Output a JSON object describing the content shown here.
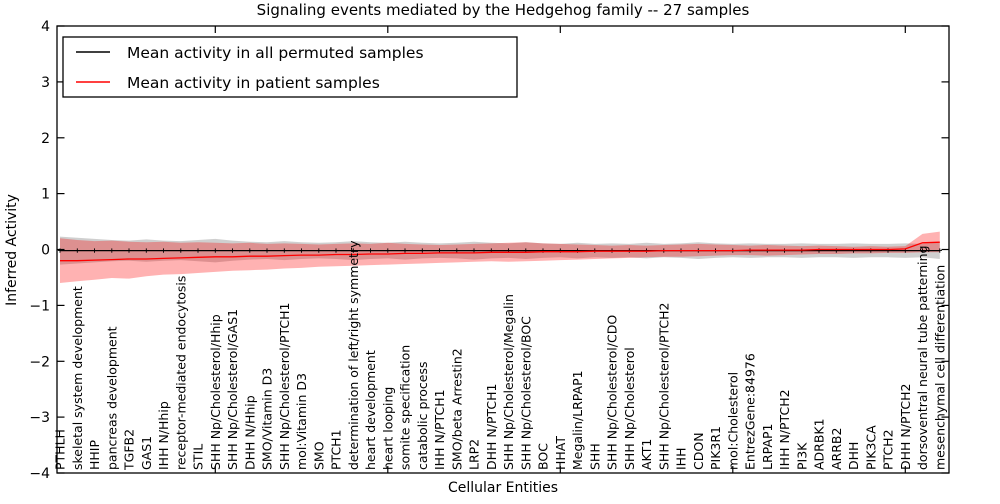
{
  "chart_data": {
    "type": "line",
    "title": "Signaling events mediated by the Hedgehog family -- 27 samples",
    "xlabel": "Cellular Entities",
    "ylabel": "Inferred Activity",
    "ylim": [
      -4,
      4
    ],
    "yticks": [
      4,
      3,
      2,
      1,
      0,
      -1,
      -2,
      -3,
      -4
    ],
    "xtick_indices": [
      9,
      19,
      29,
      39,
      49
    ],
    "grid": false,
    "legend_position": "upper left",
    "legend": [
      {
        "label": "Mean activity in all permuted samples",
        "color": "#000000"
      },
      {
        "label": "Mean activity in patient samples",
        "color": "#ff0000"
      }
    ],
    "categories": [
      "PTHLH",
      "skeletal system development",
      "HHIP",
      "pancreas development",
      "TGFB2",
      "GAS1",
      "IHH N/Hhip",
      "receptor-mediated endocytosis",
      "STIL",
      "SHH Np/Cholesterol/Hhip",
      "SHH Np/Cholesterol/GAS1",
      "DHH N/Hhip",
      "SMO/Vitamin D3",
      "SHH Np/Cholesterol/PTCH1",
      "mol:Vitamin D3",
      "SMO",
      "PTCH1",
      "determination of left/right symmetry",
      "heart development",
      "heart looping",
      "somite specification",
      "catabolic process",
      "IHH N/PTCH1",
      "SMO/beta Arrestin2",
      "LRP2",
      "DHH N/PTCH1",
      "SHH Np/Cholesterol/Megalin",
      "SHH Np/Cholesterol/BOC",
      "BOC",
      "HHAT",
      "Megalin/LRPAP1",
      "SHH",
      "SHH Np/Cholesterol/CDO",
      "SHH Np/Cholesterol",
      "AKT1",
      "SHH Np/Cholesterol/PTCH2",
      "IHH",
      "CDON",
      "PIK3R1",
      "mol:Cholesterol",
      "EntrezGene:84976",
      "LRPAP1",
      "IHH N/PTCH2",
      "PI3K",
      "ADRBK1",
      "ARRB2",
      "DHH",
      "PIK3CA",
      "PTCH2",
      "DHH N/PTCH2",
      "dorsoventral neural tube patterning",
      "mesenchymal cell differentiation"
    ],
    "series": [
      {
        "name": "Mean activity in all permuted samples",
        "color": "#000000",
        "marker": "plus",
        "values": [
          -0.02,
          -0.02,
          -0.02,
          -0.02,
          -0.02,
          -0.02,
          -0.02,
          -0.02,
          -0.02,
          -0.02,
          -0.02,
          -0.02,
          -0.02,
          -0.02,
          -0.02,
          -0.02,
          -0.02,
          -0.02,
          -0.02,
          -0.02,
          -0.02,
          -0.02,
          -0.02,
          -0.02,
          -0.02,
          -0.02,
          -0.02,
          -0.02,
          -0.02,
          -0.02,
          -0.02,
          -0.02,
          -0.02,
          -0.02,
          -0.02,
          -0.02,
          -0.02,
          -0.02,
          -0.02,
          -0.02,
          -0.02,
          -0.02,
          -0.02,
          -0.02,
          -0.02,
          -0.02,
          -0.02,
          -0.02,
          -0.02,
          -0.02,
          -0.02,
          -0.02
        ],
        "band": {
          "color": "#a8a8a8",
          "opacity": 0.55,
          "upper": [
            0.23,
            0.21,
            0.19,
            0.17,
            0.16,
            0.18,
            0.16,
            0.15,
            0.17,
            0.19,
            0.16,
            0.14,
            0.13,
            0.15,
            0.13,
            0.12,
            0.13,
            0.15,
            0.13,
            0.12,
            0.14,
            0.12,
            0.11,
            0.12,
            0.14,
            0.12,
            0.11,
            0.13,
            0.11,
            0.1,
            0.12,
            0.1,
            0.11,
            0.1,
            0.12,
            0.1,
            0.11,
            0.13,
            0.11,
            0.1,
            0.11,
            0.1,
            0.1,
            0.11,
            0.1,
            0.1,
            0.11,
            0.1,
            0.1,
            0.11,
            0.1,
            0.13
          ],
          "lower": [
            -0.27,
            -0.25,
            -0.23,
            -0.21,
            -0.2,
            -0.22,
            -0.2,
            -0.19,
            -0.21,
            -0.23,
            -0.2,
            -0.18,
            -0.17,
            -0.19,
            -0.17,
            -0.16,
            -0.17,
            -0.19,
            -0.17,
            -0.16,
            -0.18,
            -0.16,
            -0.15,
            -0.16,
            -0.18,
            -0.16,
            -0.15,
            -0.17,
            -0.15,
            -0.14,
            -0.16,
            -0.14,
            -0.15,
            -0.14,
            -0.16,
            -0.14,
            -0.15,
            -0.17,
            -0.15,
            -0.14,
            -0.15,
            -0.14,
            -0.14,
            -0.15,
            -0.14,
            -0.14,
            -0.15,
            -0.14,
            -0.14,
            -0.15,
            -0.14,
            -0.17
          ]
        }
      },
      {
        "name": "Mean activity in patient samples",
        "color": "#ff0000",
        "marker": null,
        "values": [
          -0.2,
          -0.2,
          -0.19,
          -0.18,
          -0.17,
          -0.17,
          -0.16,
          -0.15,
          -0.14,
          -0.13,
          -0.13,
          -0.12,
          -0.12,
          -0.11,
          -0.1,
          -0.1,
          -0.09,
          -0.09,
          -0.08,
          -0.08,
          -0.07,
          -0.07,
          -0.06,
          -0.06,
          -0.06,
          -0.05,
          -0.05,
          -0.05,
          -0.04,
          -0.04,
          -0.04,
          -0.03,
          -0.03,
          -0.03,
          -0.03,
          -0.02,
          -0.02,
          -0.02,
          -0.02,
          -0.02,
          -0.01,
          -0.01,
          -0.01,
          -0.01,
          0.0,
          0.0,
          0.0,
          0.0,
          0.0,
          0.01,
          0.12,
          0.13
        ],
        "band": {
          "color": "#ff0000",
          "opacity": 0.3,
          "upper": [
            0.2,
            0.17,
            0.15,
            0.16,
            0.14,
            0.13,
            0.14,
            0.12,
            0.13,
            0.12,
            0.11,
            0.12,
            0.1,
            0.11,
            0.1,
            0.09,
            0.1,
            0.11,
            0.1,
            0.12,
            0.1,
            0.09,
            0.08,
            0.09,
            0.1,
            0.11,
            0.12,
            0.13,
            0.11,
            0.1,
            0.09,
            0.08,
            0.07,
            0.08,
            0.07,
            0.08,
            0.09,
            0.1,
            0.09,
            0.08,
            0.07,
            0.08,
            0.07,
            0.06,
            0.07,
            0.06,
            0.05,
            0.06,
            0.05,
            0.06,
            0.28,
            0.32
          ],
          "lower": [
            -0.6,
            -0.57,
            -0.54,
            -0.51,
            -0.52,
            -0.48,
            -0.45,
            -0.44,
            -0.42,
            -0.4,
            -0.38,
            -0.37,
            -0.36,
            -0.34,
            -0.33,
            -0.31,
            -0.3,
            -0.29,
            -0.28,
            -0.27,
            -0.26,
            -0.25,
            -0.24,
            -0.23,
            -0.22,
            -0.21,
            -0.22,
            -0.21,
            -0.2,
            -0.19,
            -0.18,
            -0.17,
            -0.16,
            -0.15,
            -0.14,
            -0.13,
            -0.13,
            -0.12,
            -0.11,
            -0.1,
            -0.1,
            -0.11,
            -0.1,
            -0.09,
            -0.08,
            -0.08,
            -0.07,
            -0.07,
            -0.06,
            -0.06,
            -0.05,
            -0.05
          ]
        }
      }
    ]
  }
}
